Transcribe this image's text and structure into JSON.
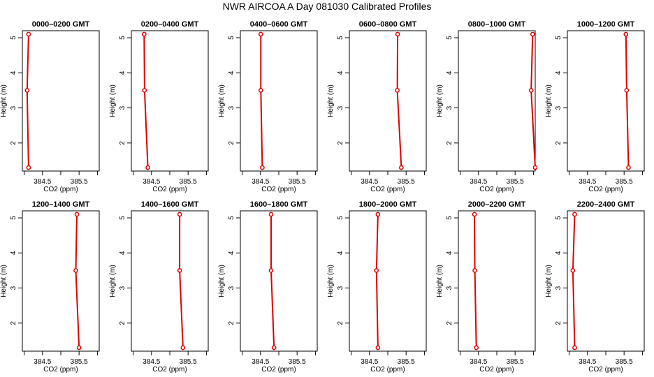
{
  "figure_title": "NWR AIRCOA A  Day 081030  Calibrated Profiles",
  "colors": {
    "series": "#dd0000",
    "axis": "#000000"
  },
  "chart_data": [
    {
      "type": "line",
      "title": "0000–0200 GMT",
      "xlabel": "CO2 (ppm)",
      "ylabel": "Height (m)",
      "xlim": [
        383.95,
        386.05
      ],
      "ylim": [
        1.2,
        5.2
      ],
      "x_ticks": [
        384.5,
        385.5
      ],
      "y_ticks": [
        2,
        3,
        4,
        5
      ],
      "grid": false,
      "series": [
        {
          "x": [
            384.12,
            384.08,
            384.12
          ],
          "y": [
            5.1,
            3.5,
            1.3
          ]
        }
      ]
    },
    {
      "type": "line",
      "title": "0200–0400 GMT",
      "xlabel": "CO2 (ppm)",
      "ylabel": "Height (m)",
      "xlim": [
        383.95,
        386.05
      ],
      "ylim": [
        1.2,
        5.2
      ],
      "x_ticks": [
        384.5,
        385.5
      ],
      "y_ticks": [
        2,
        3,
        4,
        5
      ],
      "grid": false,
      "series": [
        {
          "x": [
            384.3,
            384.31,
            384.4
          ],
          "y": [
            5.1,
            3.5,
            1.3
          ]
        }
      ]
    },
    {
      "type": "line",
      "title": "0400–0600 GMT",
      "xlabel": "CO2 (ppm)",
      "ylabel": "Height (m)",
      "xlim": [
        383.95,
        386.05
      ],
      "ylim": [
        1.2,
        5.2
      ],
      "x_ticks": [
        384.5,
        385.5
      ],
      "y_ticks": [
        2,
        3,
        4,
        5
      ],
      "grid": false,
      "series": [
        {
          "x": [
            384.51,
            384.51,
            384.55
          ],
          "y": [
            5.1,
            3.5,
            1.3
          ]
        }
      ]
    },
    {
      "type": "line",
      "title": "0600–0800 GMT",
      "xlabel": "CO2 (ppm)",
      "ylabel": "Height (m)",
      "xlim": [
        383.95,
        386.05
      ],
      "ylim": [
        1.2,
        5.2
      ],
      "x_ticks": [
        384.5,
        385.5
      ],
      "y_ticks": [
        2,
        3,
        4,
        5
      ],
      "grid": false,
      "series": [
        {
          "x": [
            385.27,
            385.26,
            385.37
          ],
          "y": [
            5.1,
            3.5,
            1.3
          ]
        }
      ]
    },
    {
      "type": "line",
      "title": "0800–1000 GMT",
      "xlabel": "CO2 (ppm)",
      "ylabel": "Height (m)",
      "xlim": [
        383.95,
        386.05
      ],
      "ylim": [
        1.2,
        5.2
      ],
      "x_ticks": [
        384.5,
        385.5
      ],
      "y_ticks": [
        2,
        3,
        4,
        5
      ],
      "grid": false,
      "series": [
        {
          "x": [
            385.98,
            385.94,
            386.05
          ],
          "y": [
            5.1,
            3.5,
            1.3
          ]
        }
      ]
    },
    {
      "type": "line",
      "title": "1000–1200 GMT",
      "xlabel": "CO2 (ppm)",
      "ylabel": "Height (m)",
      "xlim": [
        383.95,
        386.05
      ],
      "ylim": [
        1.2,
        5.2
      ],
      "x_ticks": [
        384.5,
        385.5
      ],
      "y_ticks": [
        2,
        3,
        4,
        5
      ],
      "grid": false,
      "series": [
        {
          "x": [
            385.55,
            385.57,
            385.62
          ],
          "y": [
            5.1,
            3.5,
            1.3
          ]
        }
      ]
    },
    {
      "type": "line",
      "title": "1200–1400 GMT",
      "xlabel": "CO2 (ppm)",
      "ylabel": "Height (m)",
      "xlim": [
        383.95,
        386.05
      ],
      "ylim": [
        1.2,
        5.2
      ],
      "x_ticks": [
        384.5,
        385.5
      ],
      "y_ticks": [
        2,
        3,
        4,
        5
      ],
      "grid": false,
      "series": [
        {
          "x": [
            385.44,
            385.41,
            385.5
          ],
          "y": [
            5.1,
            3.5,
            1.3
          ]
        }
      ]
    },
    {
      "type": "line",
      "title": "1400–1600 GMT",
      "xlabel": "CO2 (ppm)",
      "ylabel": "Height (m)",
      "xlim": [
        383.95,
        386.05
      ],
      "ylim": [
        1.2,
        5.2
      ],
      "x_ticks": [
        384.5,
        385.5
      ],
      "y_ticks": [
        2,
        3,
        4,
        5
      ],
      "grid": false,
      "series": [
        {
          "x": [
            385.27,
            385.27,
            385.36
          ],
          "y": [
            5.1,
            3.5,
            1.3
          ]
        }
      ]
    },
    {
      "type": "line",
      "title": "1600–1800 GMT",
      "xlabel": "CO2 (ppm)",
      "ylabel": "Height (m)",
      "xlim": [
        383.95,
        386.05
      ],
      "ylim": [
        1.2,
        5.2
      ],
      "x_ticks": [
        384.5,
        385.5
      ],
      "y_ticks": [
        2,
        3,
        4,
        5
      ],
      "grid": false,
      "series": [
        {
          "x": [
            384.79,
            384.79,
            384.87
          ],
          "y": [
            5.1,
            3.5,
            1.3
          ]
        }
      ]
    },
    {
      "type": "line",
      "title": "1800–2000 GMT",
      "xlabel": "CO2 (ppm)",
      "ylabel": "Height (m)",
      "xlim": [
        383.95,
        386.05
      ],
      "ylim": [
        1.2,
        5.2
      ],
      "x_ticks": [
        384.5,
        385.5
      ],
      "y_ticks": [
        2,
        3,
        4,
        5
      ],
      "grid": false,
      "series": [
        {
          "x": [
            384.73,
            384.69,
            384.73
          ],
          "y": [
            5.1,
            3.5,
            1.3
          ]
        }
      ]
    },
    {
      "type": "line",
      "title": "2000–2200 GMT",
      "xlabel": "CO2 (ppm)",
      "ylabel": "Height (m)",
      "xlim": [
        383.95,
        386.05
      ],
      "ylim": [
        1.2,
        5.2
      ],
      "x_ticks": [
        384.5,
        385.5
      ],
      "y_ticks": [
        2,
        3,
        4,
        5
      ],
      "grid": false,
      "series": [
        {
          "x": [
            384.39,
            384.4,
            384.44
          ],
          "y": [
            5.1,
            3.5,
            1.3
          ]
        }
      ]
    },
    {
      "type": "line",
      "title": "2200–2400 GMT",
      "xlabel": "CO2 (ppm)",
      "ylabel": "Height (m)",
      "xlim": [
        383.95,
        386.05
      ],
      "ylim": [
        1.2,
        5.2
      ],
      "x_ticks": [
        384.5,
        385.5
      ],
      "y_ticks": [
        2,
        3,
        4,
        5
      ],
      "grid": false,
      "series": [
        {
          "x": [
            384.15,
            384.1,
            384.15
          ],
          "y": [
            5.1,
            3.5,
            1.3
          ]
        }
      ]
    }
  ]
}
